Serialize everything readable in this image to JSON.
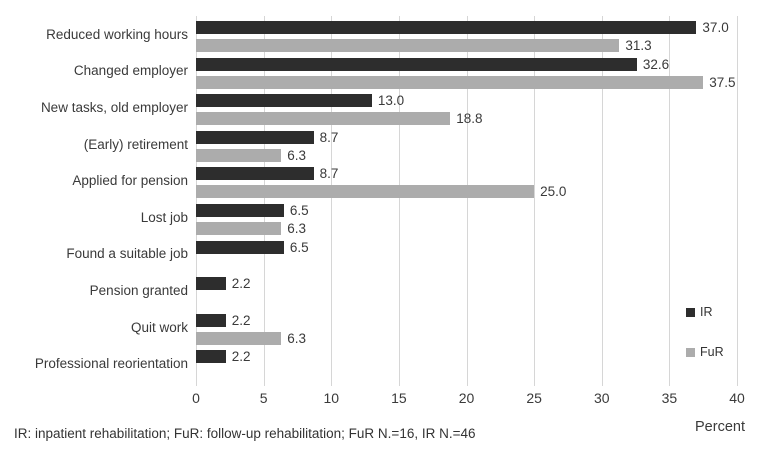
{
  "chart_data": {
    "type": "bar",
    "orientation": "horizontal",
    "title": "",
    "categories": [
      "Reduced working hours",
      "Changed employer",
      "New tasks, old employer",
      "(Early) retirement",
      "Applied for pension",
      "Lost job",
      "Found a suitable job",
      "Pension granted",
      "Quit work",
      "Professional reorientation"
    ],
    "series": [
      {
        "name": "IR",
        "color": "#2d2d2d",
        "values": [
          37.0,
          32.6,
          13.0,
          8.7,
          8.7,
          6.5,
          6.5,
          2.2,
          2.2,
          2.2
        ],
        "labels": [
          "37.0",
          "32.6",
          "13.0",
          "8.7",
          "8.7",
          "6.5",
          "6.5",
          "2.2",
          "2.2",
          "2.2"
        ]
      },
      {
        "name": "FuR",
        "color": "#acacac",
        "values": [
          31.3,
          37.5,
          18.8,
          6.3,
          25.0,
          6.3,
          null,
          null,
          6.3,
          null
        ],
        "labels": [
          "31.3",
          "37.5",
          "18.8",
          "6.3",
          "25.0",
          "6.3",
          "",
          "",
          "6.3",
          ""
        ]
      }
    ],
    "xlabel": "Percent",
    "xlim": [
      0,
      40
    ],
    "xticks": [
      0,
      5,
      10,
      15,
      20,
      25,
      30,
      35,
      40
    ],
    "grid": true,
    "gridline_color": "#d6d6d6",
    "legend_position": "right-inside",
    "value_labels": true
  },
  "footnote": "IR: inpatient rehabilitation; FuR: follow-up rehabilitation; FuR N.=16, IR N.=46"
}
